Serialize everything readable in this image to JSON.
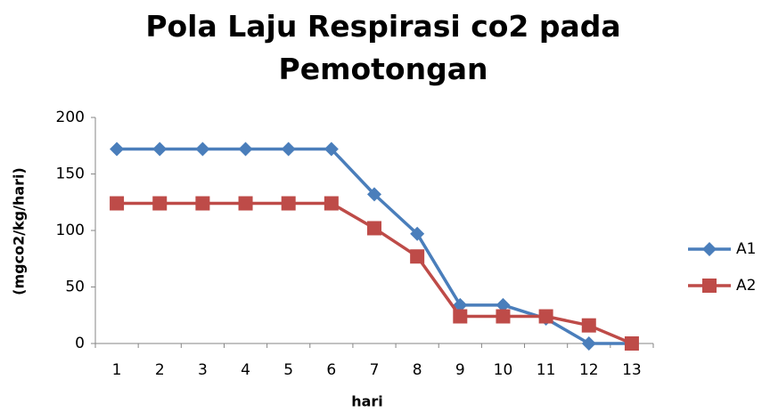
{
  "chart_data": {
    "type": "line",
    "title": "Pola Laju Respirasi co2 pada Pemotongan",
    "y_label": "(mgco2/kg/hari)",
    "x_label": "hari",
    "categories": [
      "1",
      "2",
      "3",
      "4",
      "5",
      "6",
      "7",
      "8",
      "9",
      "10",
      "11",
      "12",
      "13"
    ],
    "series": [
      {
        "name": "A1",
        "color": "#4a7ebb",
        "marker": "diamond",
        "values": [
          172,
          172,
          172,
          172,
          172,
          172,
          132,
          97,
          34,
          34,
          22,
          0,
          0
        ]
      },
      {
        "name": "A2",
        "color": "#be4b48",
        "marker": "square",
        "values": [
          124,
          124,
          124,
          124,
          124,
          124,
          102,
          77,
          24,
          24,
          24,
          16,
          0
        ]
      }
    ],
    "ylim": [
      0,
      200
    ],
    "yticks": [
      0,
      50,
      100,
      150,
      200
    ],
    "grid": false,
    "legend": "right"
  }
}
